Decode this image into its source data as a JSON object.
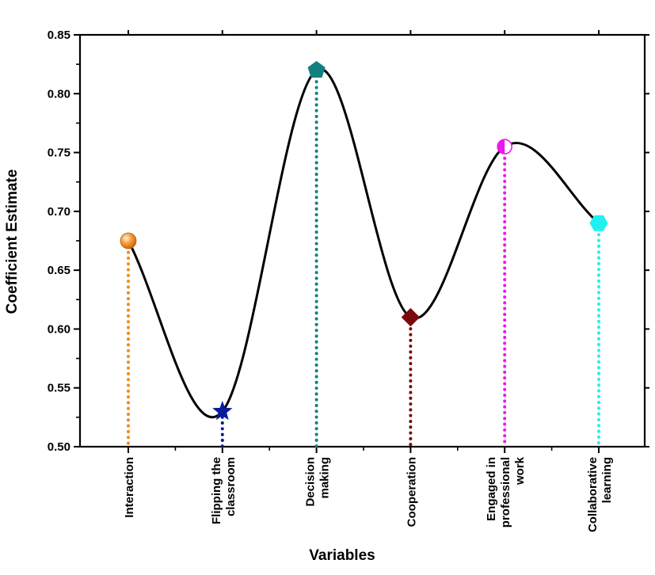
{
  "chart_data": {
    "type": "line",
    "xlabel": "Variables",
    "ylabel": "Coefficient Estimate",
    "ylim": [
      0.5,
      0.85
    ],
    "yticks": [
      "0.50",
      "0.55",
      "0.60",
      "0.65",
      "0.70",
      "0.75",
      "0.80",
      "0.85"
    ],
    "grid": false,
    "categories": [
      [
        "Interaction"
      ],
      [
        "Flipping the",
        "classroom"
      ],
      [
        "Decision",
        "making"
      ],
      [
        "Cooperation"
      ],
      [
        "Engaged in",
        "professional",
        "work"
      ],
      [
        "Collaborative",
        "learning"
      ]
    ],
    "values": [
      0.675,
      0.53,
      0.82,
      0.61,
      0.755,
      0.69
    ],
    "colors": [
      "#f28a1e",
      "#0a1a9a",
      "#138080",
      "#7a0a0a",
      "#ee16ee",
      "#22f0f0"
    ],
    "markers": [
      "sphere",
      "star",
      "pentagon",
      "diamond",
      "half-circle",
      "hexagon"
    ]
  }
}
